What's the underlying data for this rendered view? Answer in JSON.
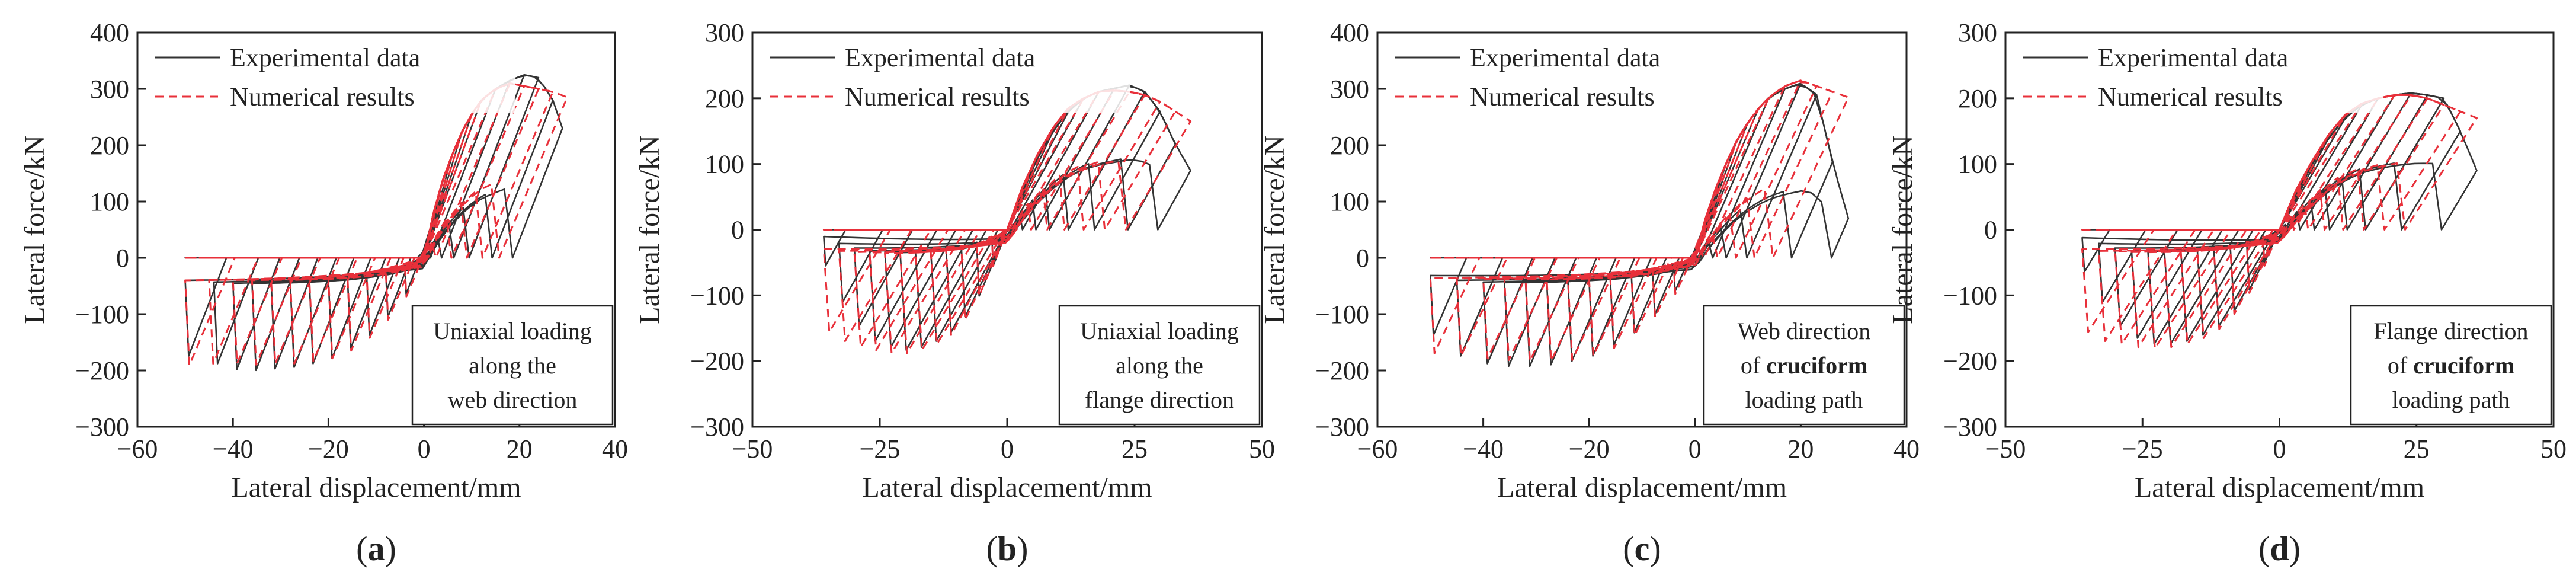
{
  "figure": {
    "panels": [
      "a",
      "b",
      "c",
      "d"
    ]
  },
  "colors": {
    "experimental": "#333333",
    "numerical": "#e8303a",
    "axis": "#222222"
  },
  "chart_data": [
    {
      "type": "line",
      "id": "a",
      "panel_label": "a",
      "title": "",
      "xlabel": "Lateral displacement/mm",
      "ylabel": "Lateral force/kN",
      "xlim": [
        -60,
        40
      ],
      "ylim": [
        -300,
        400
      ],
      "xticks": [
        -60,
        -40,
        -20,
        0,
        20,
        40
      ],
      "yticks": [
        -300,
        -200,
        -100,
        0,
        100,
        200,
        300,
        400
      ],
      "legend": {
        "placement": "top-left",
        "experimental": "Experimental data",
        "numerical": "Numerical results"
      },
      "annotation": {
        "placement": "bottom-right",
        "lines": [
          [
            {
              "t": "Uniaxial loading",
              "b": false
            }
          ],
          [
            {
              "t": "along the",
              "b": false
            }
          ],
          [
            {
              "t": "web direction",
              "b": false
            }
          ]
        ]
      },
      "hysteresis": {
        "experimental": {
          "pos_peaks": [
            [
              2,
              80
            ],
            [
              4,
              140
            ],
            [
              6,
              185
            ],
            [
              8,
              225
            ],
            [
              10,
              255
            ],
            [
              12,
              280
            ],
            [
              15,
              300
            ],
            [
              18,
              315
            ],
            [
              21,
              325
            ],
            [
              24,
              320
            ],
            [
              27,
              280
            ],
            [
              29,
              230
            ]
          ],
          "neg_peaks": [
            [
              -4,
              -70
            ],
            [
              -8,
              -115
            ],
            [
              -12,
              -150
            ],
            [
              -16,
              -175
            ],
            [
              -20,
              -195
            ],
            [
              -24,
              -205
            ],
            [
              -28,
              -212
            ],
            [
              -32,
              -215
            ],
            [
              -36,
              -218
            ],
            [
              -40,
              -216
            ],
            [
              -44,
              -205
            ],
            [
              -50,
              -190
            ]
          ],
          "k": 22,
          "h": 0.6
        },
        "numerical": {
          "pos_peaks": [
            [
              2,
              80
            ],
            [
              4,
              140
            ],
            [
              6,
              185
            ],
            [
              8,
              225
            ],
            [
              10,
              255
            ],
            [
              12,
              280
            ],
            [
              15,
              300
            ],
            [
              18,
              310
            ],
            [
              21,
              305
            ],
            [
              24,
              300
            ],
            [
              27,
              295
            ],
            [
              30,
              285
            ]
          ],
          "neg_peaks": [
            [
              -4,
              -75
            ],
            [
              -8,
              -120
            ],
            [
              -12,
              -155
            ],
            [
              -16,
              -180
            ],
            [
              -20,
              -195
            ],
            [
              -24,
              -200
            ],
            [
              -28,
              -205
            ],
            [
              -32,
              -205
            ],
            [
              -36,
              -207
            ],
            [
              -40,
              -205
            ],
            [
              -45,
              -205
            ],
            [
              -50,
              -208
            ]
          ],
          "k": 20,
          "h": 0.55
        }
      }
    },
    {
      "type": "line",
      "id": "b",
      "panel_label": "b",
      "title": "",
      "xlabel": "Lateral displacement/mm",
      "ylabel": "Lateral force/kN",
      "xlim": [
        -50,
        50
      ],
      "ylim": [
        -300,
        300
      ],
      "xticks": [
        -50,
        -25,
        0,
        25,
        50
      ],
      "yticks": [
        -300,
        -200,
        -100,
        0,
        100,
        200,
        300
      ],
      "legend": {
        "placement": "top-left",
        "experimental": "Experimental data",
        "numerical": "Numerical results"
      },
      "annotation": {
        "placement": "bottom-right",
        "lines": [
          [
            {
              "t": "Uniaxial loading",
              "b": false
            }
          ],
          [
            {
              "t": "along the",
              "b": false
            }
          ],
          [
            {
              "t": "flange direction",
              "b": false
            }
          ]
        ]
      },
      "hysteresis": {
        "experimental": {
          "pos_peaks": [
            [
              3,
              60
            ],
            [
              6,
              110
            ],
            [
              9,
              150
            ],
            [
              12,
              180
            ],
            [
              15,
              200
            ],
            [
              18,
              210
            ],
            [
              21,
              215
            ],
            [
              24,
              220
            ],
            [
              27,
              210
            ],
            [
              30,
              180
            ],
            [
              33,
              130
            ],
            [
              36,
              90
            ]
          ],
          "neg_peaks": [
            [
              -3,
              -60
            ],
            [
              -6,
              -110
            ],
            [
              -9,
              -145
            ],
            [
              -12,
              -170
            ],
            [
              -15,
              -185
            ],
            [
              -18,
              -195
            ],
            [
              -21,
              -200
            ],
            [
              -24,
              -195
            ],
            [
              -27,
              -185
            ],
            [
              -30,
              -160
            ],
            [
              -33,
              -120
            ],
            [
              -36,
              -60
            ]
          ],
          "k": 14,
          "h": 0.5
        },
        "numerical": {
          "pos_peaks": [
            [
              3,
              65
            ],
            [
              6,
              115
            ],
            [
              9,
              155
            ],
            [
              12,
              185
            ],
            [
              15,
              200
            ],
            [
              18,
              210
            ],
            [
              21,
              212
            ],
            [
              24,
              210
            ],
            [
              27,
              205
            ],
            [
              30,
              195
            ],
            [
              33,
              180
            ],
            [
              36,
              165
            ]
          ],
          "neg_peaks": [
            [
              -3,
              -60
            ],
            [
              -6,
              -110
            ],
            [
              -9,
              -150
            ],
            [
              -12,
              -175
            ],
            [
              -15,
              -190
            ],
            [
              -18,
              -200
            ],
            [
              -21,
              -205
            ],
            [
              -24,
              -205
            ],
            [
              -27,
              -200
            ],
            [
              -30,
              -195
            ],
            [
              -33,
              -185
            ],
            [
              -36,
              -170
            ]
          ],
          "k": 13,
          "h": 0.5
        }
      }
    },
    {
      "type": "line",
      "id": "c",
      "panel_label": "c",
      "title": "",
      "xlabel": "Lateral displacement/mm",
      "ylabel": "Lateral force/kN",
      "xlim": [
        -60,
        40
      ],
      "ylim": [
        -300,
        400
      ],
      "xticks": [
        -60,
        -40,
        -20,
        0,
        20,
        40
      ],
      "yticks": [
        -300,
        -200,
        -100,
        0,
        100,
        200,
        300,
        400
      ],
      "legend": {
        "placement": "top-left",
        "experimental": "Experimental data",
        "numerical": "Numerical results"
      },
      "annotation": {
        "placement": "bottom-right",
        "lines": [
          [
            {
              "t": "Web direction",
              "b": false
            }
          ],
          [
            {
              "t": "of ",
              "b": false
            },
            {
              "t": "cruciform",
              "b": true
            }
          ],
          [
            {
              "t": "loading path",
              "b": false
            }
          ]
        ]
      },
      "hysteresis": {
        "experimental": {
          "pos_peaks": [
            [
              2,
              70
            ],
            [
              4,
              125
            ],
            [
              6,
              170
            ],
            [
              8,
              210
            ],
            [
              10,
              240
            ],
            [
              12,
              265
            ],
            [
              14,
              285
            ],
            [
              17,
              300
            ],
            [
              20,
              310
            ],
            [
              23,
              290
            ],
            [
              26,
              170
            ],
            [
              29,
              70
            ]
          ],
          "neg_peaks": [
            [
              -4,
              -65
            ],
            [
              -8,
              -110
            ],
            [
              -12,
              -145
            ],
            [
              -16,
              -170
            ],
            [
              -20,
              -190
            ],
            [
              -24,
              -200
            ],
            [
              -28,
              -207
            ],
            [
              -32,
              -210
            ],
            [
              -36,
              -210
            ],
            [
              -40,
              -205
            ],
            [
              -45,
              -190
            ],
            [
              -50,
              -150
            ]
          ],
          "k": 22,
          "h": 0.6
        },
        "numerical": {
          "pos_peaks": [
            [
              2,
              70
            ],
            [
              4,
              125
            ],
            [
              6,
              170
            ],
            [
              8,
              210
            ],
            [
              10,
              240
            ],
            [
              12,
              265
            ],
            [
              14,
              285
            ],
            [
              17,
              305
            ],
            [
              20,
              315
            ],
            [
              23,
              305
            ],
            [
              26,
              295
            ],
            [
              29,
              285
            ]
          ],
          "neg_peaks": [
            [
              -4,
              -70
            ],
            [
              -8,
              -115
            ],
            [
              -12,
              -150
            ],
            [
              -16,
              -175
            ],
            [
              -20,
              -190
            ],
            [
              -24,
              -198
            ],
            [
              -28,
              -200
            ],
            [
              -32,
              -200
            ],
            [
              -36,
              -198
            ],
            [
              -40,
              -195
            ],
            [
              -45,
              -190
            ],
            [
              -50,
              -185
            ]
          ],
          "k": 20,
          "h": 0.55
        }
      }
    },
    {
      "type": "line",
      "id": "d",
      "panel_label": "d",
      "title": "",
      "xlabel": "Lateral displacement/mm",
      "ylabel": "Lateral force/kN",
      "xlim": [
        -50,
        50
      ],
      "ylim": [
        -300,
        300
      ],
      "xticks": [
        -50,
        -25,
        0,
        25,
        50
      ],
      "yticks": [
        -300,
        -200,
        -100,
        0,
        100,
        200,
        300
      ],
      "legend": {
        "placement": "top-left",
        "experimental": "Experimental data",
        "numerical": "Numerical results"
      },
      "annotation": {
        "placement": "bottom-right",
        "lines": [
          [
            {
              "t": "Flange direction",
              "b": false
            }
          ],
          [
            {
              "t": "of ",
              "b": false
            },
            {
              "t": "cruciform",
              "b": true
            }
          ],
          [
            {
              "t": "loading path",
              "b": false
            }
          ]
        ]
      },
      "hysteresis": {
        "experimental": {
          "pos_peaks": [
            [
              3,
              55
            ],
            [
              6,
              100
            ],
            [
              9,
              140
            ],
            [
              12,
              170
            ],
            [
              15,
              190
            ],
            [
              18,
              200
            ],
            [
              21,
              205
            ],
            [
              24,
              208
            ],
            [
              27,
              205
            ],
            [
              30,
              200
            ],
            [
              33,
              150
            ],
            [
              36,
              90
            ]
          ],
          "neg_peaks": [
            [
              -3,
              -55
            ],
            [
              -6,
              -100
            ],
            [
              -9,
              -135
            ],
            [
              -12,
              -160
            ],
            [
              -15,
              -175
            ],
            [
              -18,
              -185
            ],
            [
              -21,
              -190
            ],
            [
              -24,
              -190
            ],
            [
              -27,
              -180
            ],
            [
              -30,
              -160
            ],
            [
              -33,
              -120
            ],
            [
              -36,
              -70
            ]
          ],
          "k": 14,
          "h": 0.5
        },
        "numerical": {
          "pos_peaks": [
            [
              3,
              60
            ],
            [
              6,
              105
            ],
            [
              9,
              145
            ],
            [
              12,
              175
            ],
            [
              15,
              192
            ],
            [
              18,
              200
            ],
            [
              21,
              205
            ],
            [
              24,
              205
            ],
            [
              27,
              200
            ],
            [
              30,
              190
            ],
            [
              33,
              180
            ],
            [
              36,
              170
            ]
          ],
          "neg_peaks": [
            [
              -3,
              -60
            ],
            [
              -6,
              -105
            ],
            [
              -9,
              -140
            ],
            [
              -12,
              -165
            ],
            [
              -15,
              -180
            ],
            [
              -18,
              -190
            ],
            [
              -21,
              -195
            ],
            [
              -24,
              -197
            ],
            [
              -27,
              -195
            ],
            [
              -30,
              -190
            ],
            [
              -33,
              -185
            ],
            [
              -36,
              -170
            ]
          ],
          "k": 13,
          "h": 0.5
        }
      }
    }
  ]
}
